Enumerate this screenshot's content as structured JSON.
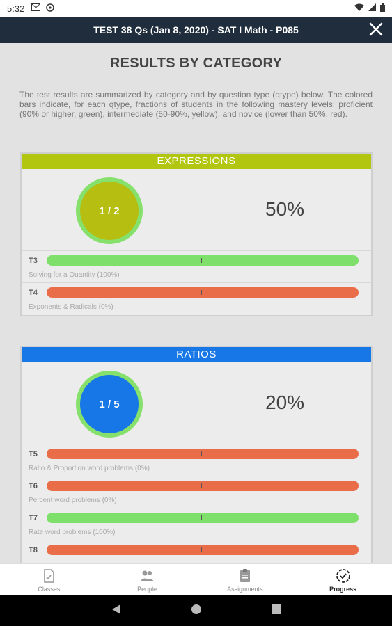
{
  "status": {
    "time": "5:32"
  },
  "title": "TEST 38 Qs (Jan 8, 2020) - SAT I Math - P085",
  "heading": "RESULTS BY CATEGORY",
  "intro": "The test results are summarized by category and by question type (qtype) below. The colored bars indicate, for each qtype, fractions of students in the following mastery levels: proficient (90% or higher, green), intermediate (50-90%, yellow), and novice (lower than 50%, red).",
  "colors": {
    "green": "#7ee06a",
    "red": "#ea6d4a",
    "expressions": "#b5c70c",
    "ratios": "#1877e6",
    "ring": "#86e06c"
  },
  "categories": [
    {
      "name": "EXPRESSIONS",
      "score": "1 / 2",
      "percent": "50%",
      "header_color": "#b3c60f",
      "circle_color": "#b7be12",
      "qtypes": [
        {
          "code": "T3",
          "label": "Solving for a Quantity (100%)",
          "color": "green"
        },
        {
          "code": "T4",
          "label": "Exponents & Radicals (0%)",
          "color": "red"
        }
      ]
    },
    {
      "name": "RATIOS",
      "score": "1 / 5",
      "percent": "20%",
      "header_color": "#1877e6",
      "circle_color": "#1877e6",
      "qtypes": [
        {
          "code": "T5",
          "label": "Ratio & Proportion word problems (0%)",
          "color": "red"
        },
        {
          "code": "T6",
          "label": "Percent word problems (0%)",
          "color": "red"
        },
        {
          "code": "T7",
          "label": "Rate word problems (100%)",
          "color": "green"
        },
        {
          "code": "T8",
          "label": "",
          "color": "red"
        }
      ]
    }
  ],
  "nav": [
    {
      "label": "Classes",
      "icon": "classes-icon"
    },
    {
      "label": "People",
      "icon": "people-icon"
    },
    {
      "label": "Assignments",
      "icon": "assignments-icon"
    },
    {
      "label": "Progress",
      "icon": "progress-icon",
      "active": true
    }
  ]
}
